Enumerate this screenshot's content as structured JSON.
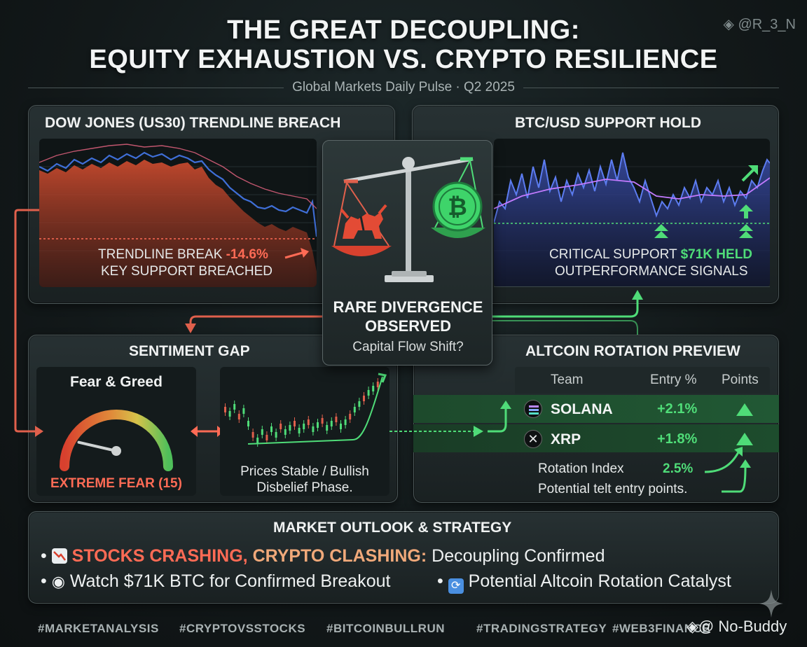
{
  "header": {
    "title_line1": "THE GREAT DECOUPLING:",
    "title_line2": "EQUITY EXHAUSTION VS. CRYPTO RESILIENCE",
    "subtitle": "Global Markets Daily Pulse · Q2 2025",
    "watermark_top": "@R_3_N"
  },
  "dow_panel": {
    "title": "DOW JONES (US30) TRENDLINE BREACH",
    "caption_prefix": "TRENDLINE BREAK",
    "caption_value": "-14.6%",
    "caption_line2": "KEY SUPPORT BREACHED",
    "colors": {
      "area": "#c84a2e",
      "line": "#3f6fd8",
      "accent": "#ff6b55"
    }
  },
  "btc_panel": {
    "title": "BTC/USD SUPPORT HOLD",
    "caption_prefix": "CRITICAL SUPPORT",
    "caption_value": "$71K HELD",
    "caption_line2": "OUTPERFORMANCE SIGNALS",
    "colors": {
      "area": "#3b4fae",
      "line": "#c37bff",
      "support": "#4fdc78"
    }
  },
  "center": {
    "icon": "scale-balance-icon",
    "left_icon": "bull-icon",
    "right_icon": "bitcoin-icon",
    "title_line1": "RARE DIVERGENCE",
    "title_line2": "OBSERVED",
    "sub": "Capital Flow Shift?"
  },
  "sentiment_panel": {
    "title": "SENTIMENT GAP",
    "gauge_title": "Fear & Greed",
    "gauge_value": 15,
    "gauge_label": "EXTREME FEAR (15)",
    "mini_caption_line1": "Prices Stable / Bullish",
    "mini_caption_line2": "Disbelief Phase."
  },
  "altcoin_panel": {
    "title": "ALTCOIN ROTATION PREVIEW",
    "columns": [
      "Team",
      "Entry %",
      "Points"
    ],
    "rows": [
      {
        "coin": "SOLANA",
        "entry": "+2.1%",
        "icon": "solana-icon"
      },
      {
        "coin": "XRP",
        "entry": "+1.8%",
        "icon": "xrp-icon"
      }
    ],
    "rotation_label": "Rotation Index",
    "rotation_value": "2.5%",
    "note": "Potential telt entry points."
  },
  "outlook": {
    "title": "MARKET OUTLOOK & STRATEGY",
    "bullet1_icon": "chart-down-icon",
    "bullet1_highlight_red": "STOCKS CRASHING,",
    "bullet1_highlight_orange": "CRYPTO CLASHING:",
    "bullet1_rest": "Decoupling Confirmed",
    "bullet2_icon": "eye-icon",
    "bullet2": "Watch $71K BTC for Confirmed Breakout",
    "bullet3_icon": "rotate-icon",
    "bullet3": "Potential Altcoin Rotation Catalyst"
  },
  "footer": {
    "hashtags": [
      "#MARKETANALYSIS",
      "#CRYPTOVSSTOCKS",
      "#BITCOINBULLRUN",
      "#TRADINGSTRATEGY",
      "#WEB3FINANCE"
    ],
    "watermark": "@ No-Buddy"
  }
}
